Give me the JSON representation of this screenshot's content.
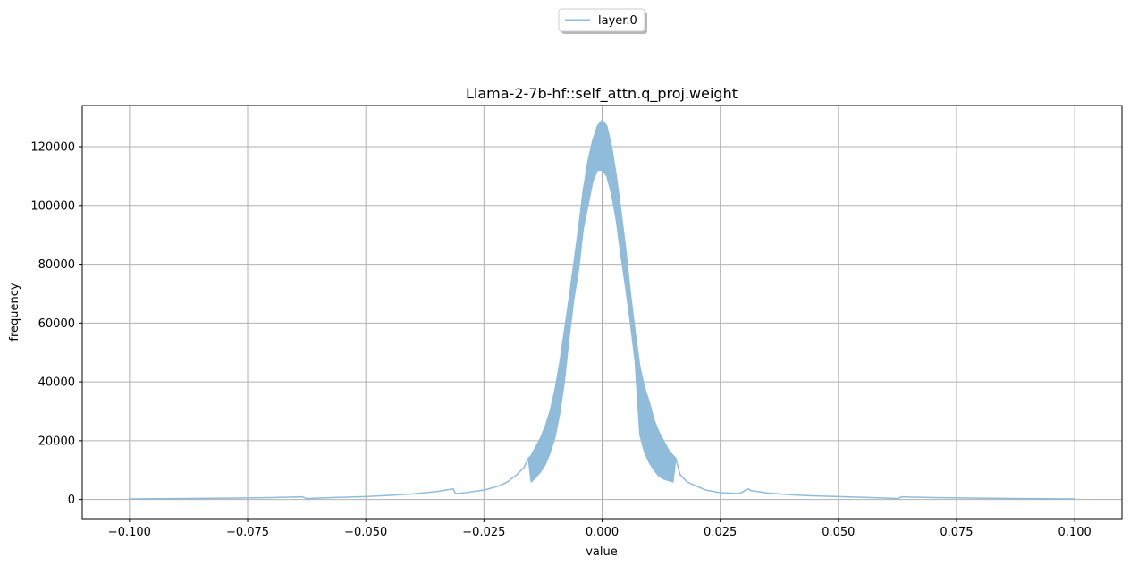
{
  "chart_data": {
    "type": "line",
    "title": "Llama-2-7b-hf::self_attn.q_proj.weight",
    "xlabel": "value",
    "ylabel": "frequency",
    "xlim": [
      -0.11,
      0.11
    ],
    "ylim": [
      -6500,
      134000
    ],
    "xticks": [
      -0.1,
      -0.075,
      -0.05,
      -0.025,
      0.0,
      0.025,
      0.05,
      0.075,
      0.1
    ],
    "xtick_labels": [
      "−0.100",
      "−0.075",
      "−0.050",
      "−0.025",
      "0.000",
      "0.025",
      "0.050",
      "0.075",
      "0.100"
    ],
    "yticks": [
      0,
      20000,
      40000,
      60000,
      80000,
      100000,
      120000
    ],
    "ytick_labels": [
      "0",
      "20000",
      "40000",
      "60000",
      "80000",
      "100000",
      "120000"
    ],
    "grid": true,
    "legend_position": "top-center",
    "series": [
      {
        "name": "layer.0",
        "color": "#8fbcdb",
        "x": [
          -0.1,
          -0.09,
          -0.08,
          -0.07,
          -0.0634,
          -0.0625,
          -0.06,
          -0.05,
          -0.045,
          -0.04,
          -0.035,
          -0.0315,
          -0.031,
          -0.029,
          -0.025,
          -0.022,
          -0.02,
          -0.018,
          -0.0165,
          -0.0156,
          -0.015,
          -0.014,
          -0.013,
          -0.012,
          -0.011,
          -0.01,
          -0.009,
          -0.008,
          -0.007,
          -0.006,
          -0.005,
          -0.004,
          -0.003,
          -0.002,
          -0.001,
          0.0,
          0.001,
          0.002,
          0.003,
          0.004,
          0.005,
          0.006,
          0.007,
          0.008,
          0.009,
          0.01,
          0.011,
          0.012,
          0.013,
          0.014,
          0.015,
          0.0156,
          0.0165,
          0.018,
          0.02,
          0.022,
          0.025,
          0.029,
          0.031,
          0.0315,
          0.035,
          0.04,
          0.045,
          0.05,
          0.06,
          0.0625,
          0.0634,
          0.07,
          0.08,
          0.09,
          0.1
        ],
        "upper": [
          200,
          300,
          450,
          650,
          900,
          300,
          500,
          1000,
          1400,
          1900,
          2700,
          3600,
          2000,
          2300,
          3200,
          4500,
          6000,
          8500,
          11000,
          14000,
          15000,
          18000,
          21000,
          25000,
          30000,
          37000,
          46000,
          57000,
          68000,
          80000,
          92000,
          105000,
          115000,
          122000,
          127000,
          129000,
          127000,
          120000,
          110000,
          98000,
          85000,
          70000,
          57000,
          45000,
          38000,
          33000,
          27000,
          23000,
          20000,
          17000,
          15000,
          14000,
          8500,
          6000,
          4500,
          3200,
          2300,
          2000,
          3600,
          3000,
          2200,
          1600,
          1200,
          1000,
          500,
          300,
          900,
          650,
          450,
          300,
          200
        ],
        "lower": [
          200,
          300,
          450,
          650,
          900,
          300,
          500,
          1000,
          1400,
          1900,
          2700,
          3600,
          2000,
          2300,
          3200,
          4500,
          6000,
          8500,
          11000,
          14000,
          6000,
          7500,
          9500,
          12000,
          16000,
          21000,
          29000,
          40000,
          55000,
          68000,
          78000,
          92000,
          100000,
          108000,
          112000,
          112000,
          110000,
          104000,
          95000,
          83000,
          72000,
          60000,
          47000,
          22000,
          16000,
          12500,
          10000,
          8000,
          7000,
          6500,
          6000,
          14000,
          8500,
          6000,
          4500,
          3200,
          2300,
          2000,
          3600,
          3000,
          2200,
          1600,
          1200,
          1000,
          500,
          300,
          900,
          650,
          450,
          300,
          200
        ]
      }
    ]
  }
}
